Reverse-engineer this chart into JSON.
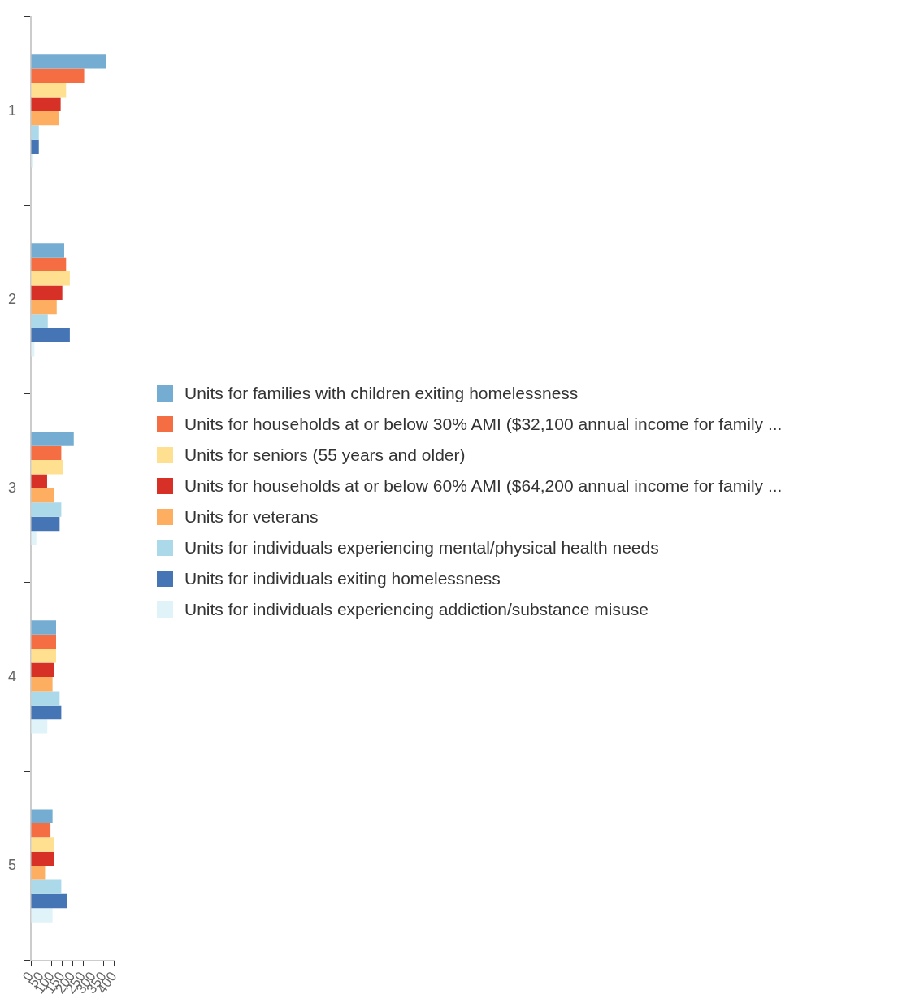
{
  "chart_data": {
    "type": "bar",
    "orientation": "horizontal",
    "categories": [
      "1",
      "2",
      "3",
      "4",
      "5"
    ],
    "series": [
      {
        "name": "Units for families with children exiting homelessness",
        "color": "#74add1",
        "values": [
          361,
          160,
          206,
          121,
          104
        ]
      },
      {
        "name": "Units for households at or below 30% AMI ($32,100 annual income for family ...",
        "color": "#f46d43",
        "values": [
          256,
          169,
          146,
          121,
          94
        ]
      },
      {
        "name": "Units for seniors (55 years and older)",
        "color": "#fee090",
        "values": [
          169,
          187,
          156,
          121,
          113
        ]
      },
      {
        "name": "Units for households at or below 60% AMI ($64,200 annual income for family ...",
        "color": "#d73027",
        "values": [
          143,
          151,
          78,
          113,
          113
        ]
      },
      {
        "name": "Units for veterans",
        "color": "#fdae61",
        "values": [
          134,
          124,
          113,
          104,
          68
        ]
      },
      {
        "name": "Units for individuals experiencing mental/physical health needs",
        "color": "#abd9e9",
        "values": [
          38,
          81,
          146,
          138,
          146
        ]
      },
      {
        "name": "Units for individuals exiting homelessness",
        "color": "#4575b4",
        "values": [
          38,
          187,
          138,
          146,
          173
        ]
      },
      {
        "name": "Units for individuals experiencing addiction/substance misuse",
        "color": "#e0f3f8",
        "values": [
          12,
          17,
          26,
          79,
          104
        ]
      }
    ],
    "xlim": [
      0,
      400
    ],
    "xticks": [
      0,
      50,
      100,
      150,
      200,
      250,
      300,
      350,
      400
    ],
    "legend": "right"
  }
}
